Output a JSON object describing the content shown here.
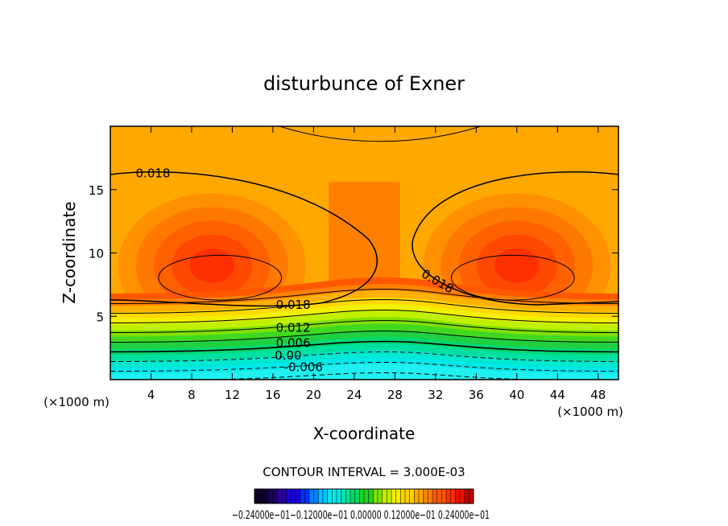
{
  "chart_data": {
    "type": "contour",
    "title": "disturbunce of Exner",
    "xlabel": "X-coordinate",
    "ylabel": "Z-coordinate",
    "x_unit_left": "(×1000 m)",
    "x_unit_right": "(×1000 m)",
    "xlim": [
      0,
      50
    ],
    "ylim": [
      0,
      20
    ],
    "x_ticks": [
      4,
      8,
      12,
      16,
      20,
      24,
      28,
      32,
      36,
      40,
      44,
      48
    ],
    "y_ticks": [
      5,
      10,
      15
    ],
    "x_tick_labels": [
      "4",
      "8",
      "12",
      "16",
      "20",
      "24",
      "28",
      "32",
      "36",
      "40",
      "44",
      "48"
    ],
    "y_tick_labels": [
      "5",
      "10",
      "15"
    ],
    "contour_interval_text": "CONTOUR INTERVAL = 3.000E-03",
    "contour_labels": [
      {
        "text": "0.018",
        "x": 4.2,
        "z": 16.3
      },
      {
        "text": "0.018",
        "x": 18.0,
        "z": 5.9
      },
      {
        "text": "0.012",
        "x": 18.0,
        "z": 4.1
      },
      {
        "text": "0.006",
        "x": 18.0,
        "z": 2.9
      },
      {
        "text": "0.00",
        "x": 17.5,
        "z": 1.9
      },
      {
        "text": "-0.006",
        "x": 19.0,
        "z": 1.0
      },
      {
        "text": "0.018",
        "x": 32.0,
        "z": 7.8
      }
    ],
    "colorbar": {
      "min": -0.024,
      "max": 0.024,
      "labels_text": "−0.24000e−01−0.12000e−01  0.00000  0.12000e−01  0.24000e−01",
      "colors": [
        "#0a0028",
        "#1a0060",
        "#2a00a0",
        "#1800d8",
        "#0030ff",
        "#0080ff",
        "#00c0ff",
        "#00e8e8",
        "#00e0a0",
        "#00d860",
        "#20d020",
        "#80e000",
        "#c0f000",
        "#f0f000",
        "#ffd000",
        "#ffa800",
        "#ff8000",
        "#ff5800",
        "#ff3000",
        "#f01000",
        "#c00000"
      ]
    }
  }
}
